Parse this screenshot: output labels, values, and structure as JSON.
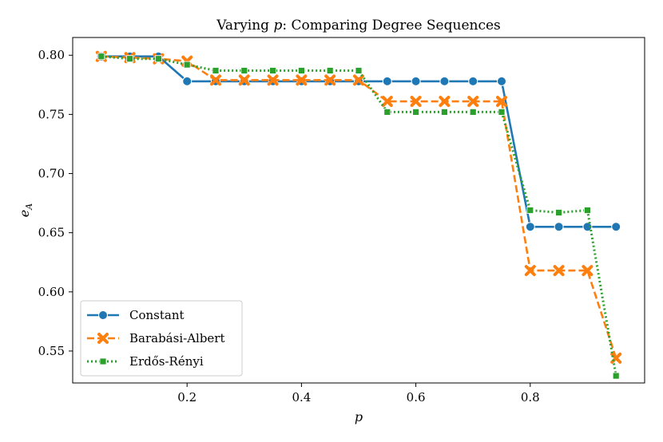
{
  "chart_data": {
    "type": "line",
    "title": "Varying p: Comparing Degree Sequences",
    "title_prefix": "Varying ",
    "title_var": "p",
    "title_suffix": ": Comparing Degree Sequences",
    "xlabel": "p",
    "ylabel": "e_A",
    "ylabel_main": "e",
    "ylabel_sub": "A",
    "xlim": [
      0.0,
      1.0
    ],
    "ylim": [
      0.523,
      0.815
    ],
    "xticks": [
      0.2,
      0.4,
      0.6,
      0.8
    ],
    "xtick_labels": [
      "0.2",
      "0.4",
      "0.6",
      "0.8"
    ],
    "yticks": [
      0.55,
      0.6,
      0.65,
      0.7,
      0.75,
      0.8
    ],
    "ytick_labels": [
      "0.55",
      "0.60",
      "0.65",
      "0.70",
      "0.75",
      "0.80"
    ],
    "grid": false,
    "legend_position": "lower-left",
    "x": [
      0.05,
      0.1,
      0.15,
      0.2,
      0.25,
      0.3,
      0.35,
      0.4,
      0.45,
      0.5,
      0.55,
      0.6,
      0.65,
      0.7,
      0.75,
      0.8,
      0.85,
      0.9,
      0.95
    ],
    "series": [
      {
        "name": "Constant",
        "color": "#1f77b4",
        "marker": "circle",
        "dash": "solid",
        "values": [
          0.799,
          0.799,
          0.799,
          0.778,
          0.778,
          0.778,
          0.778,
          0.778,
          0.778,
          0.778,
          0.778,
          0.778,
          0.778,
          0.778,
          0.778,
          0.655,
          0.655,
          0.655,
          0.655
        ]
      },
      {
        "name": "Barabási-Albert",
        "color": "#ff7f0e",
        "marker": "x",
        "dash": "dashed",
        "values": [
          0.799,
          0.798,
          0.797,
          0.795,
          0.779,
          0.779,
          0.779,
          0.779,
          0.779,
          0.779,
          0.761,
          0.761,
          0.761,
          0.761,
          0.761,
          0.618,
          0.618,
          0.618,
          0.544
        ]
      },
      {
        "name": "Erdős-Rényi",
        "color": "#2ca02c",
        "marker": "square",
        "dash": "dotted",
        "values": [
          0.799,
          0.797,
          0.797,
          0.792,
          0.787,
          0.787,
          0.787,
          0.787,
          0.787,
          0.787,
          0.752,
          0.752,
          0.752,
          0.752,
          0.752,
          0.669,
          0.667,
          0.669,
          0.529
        ]
      }
    ]
  }
}
